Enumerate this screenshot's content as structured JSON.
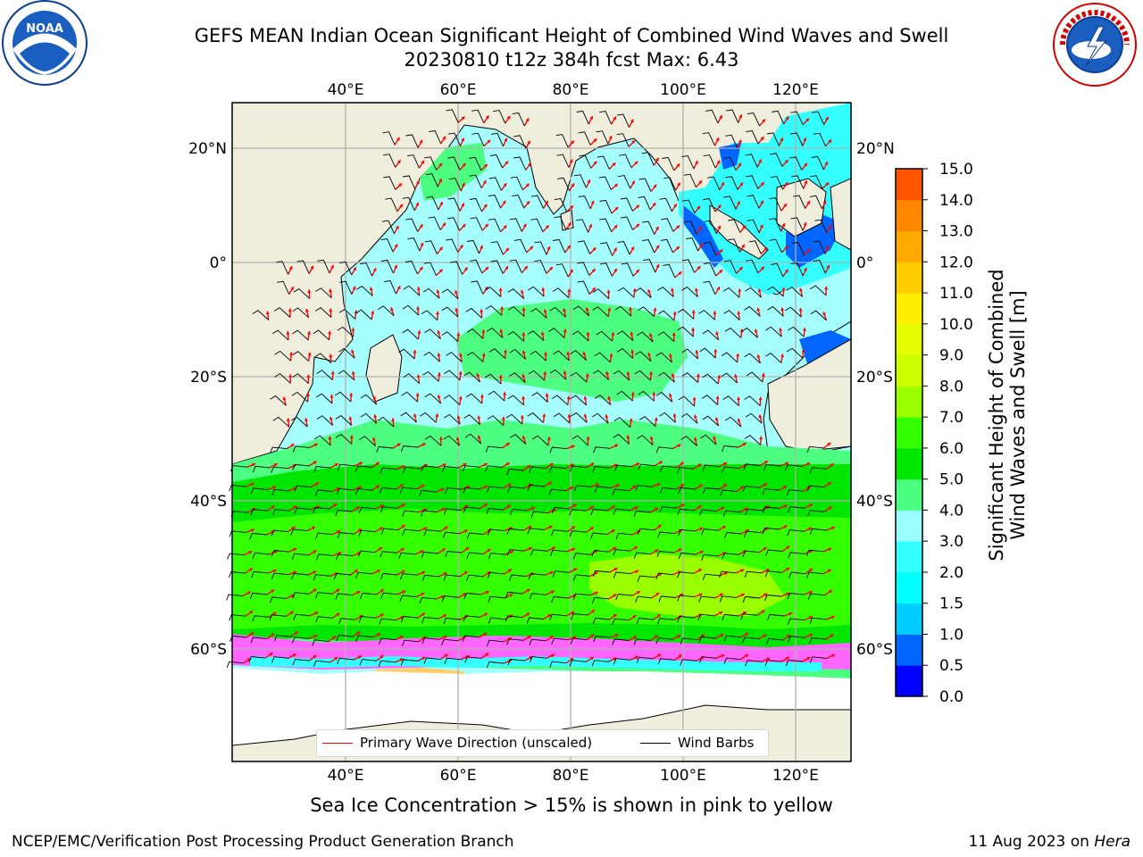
{
  "title": {
    "line1": "GEFS MEAN Indian Ocean Significant Height of Combined Wind Waves and Swell",
    "line2": "20230810 t12z 384h fcst   Max: 6.43"
  },
  "logos": {
    "left": "noaa-logo",
    "right": "nws-logo"
  },
  "map": {
    "lon_ticks": [
      "40°E",
      "60°E",
      "80°E",
      "100°E",
      "120°E"
    ],
    "lat_ticks": [
      "20°N",
      "0°",
      "20°S",
      "40°S",
      "60°S"
    ],
    "legend": [
      {
        "label": "Primary Wave Direction (unscaled)",
        "color": "#ff0000"
      },
      {
        "label": "Wind Barbs",
        "color": "#000000"
      }
    ]
  },
  "colorbar": {
    "label_line1": "Significant Height of Combined",
    "label_line2": "Wind Waves and Swell [m]",
    "ticks": [
      "0.0",
      "0.5",
      "1.0",
      "1.5",
      "2.0",
      "3.0",
      "4.0",
      "5.0",
      "6.0",
      "7.0",
      "8.0",
      "9.0",
      "10.0",
      "11.0",
      "12.0",
      "13.0",
      "14.0",
      "15.0"
    ],
    "colors": [
      "#0000ff",
      "#0066ff",
      "#00ccff",
      "#00ffff",
      "#33ffff",
      "#99ffff",
      "#4dff80",
      "#00e600",
      "#33ff00",
      "#99ff00",
      "#ccff00",
      "#e6ff00",
      "#ffee00",
      "#ffcc00",
      "#ffaa00",
      "#ff8800",
      "#ff5500",
      "#ff2200",
      "#ff0000"
    ]
  },
  "caption": "Sea Ice Concentration > 15% is shown in pink to yellow",
  "footer": {
    "left": "NCEP/EMC/Verification Post Processing Product Generation Branch",
    "right_date": "11 Aug 2023 on ",
    "right_host": "Hera"
  }
}
